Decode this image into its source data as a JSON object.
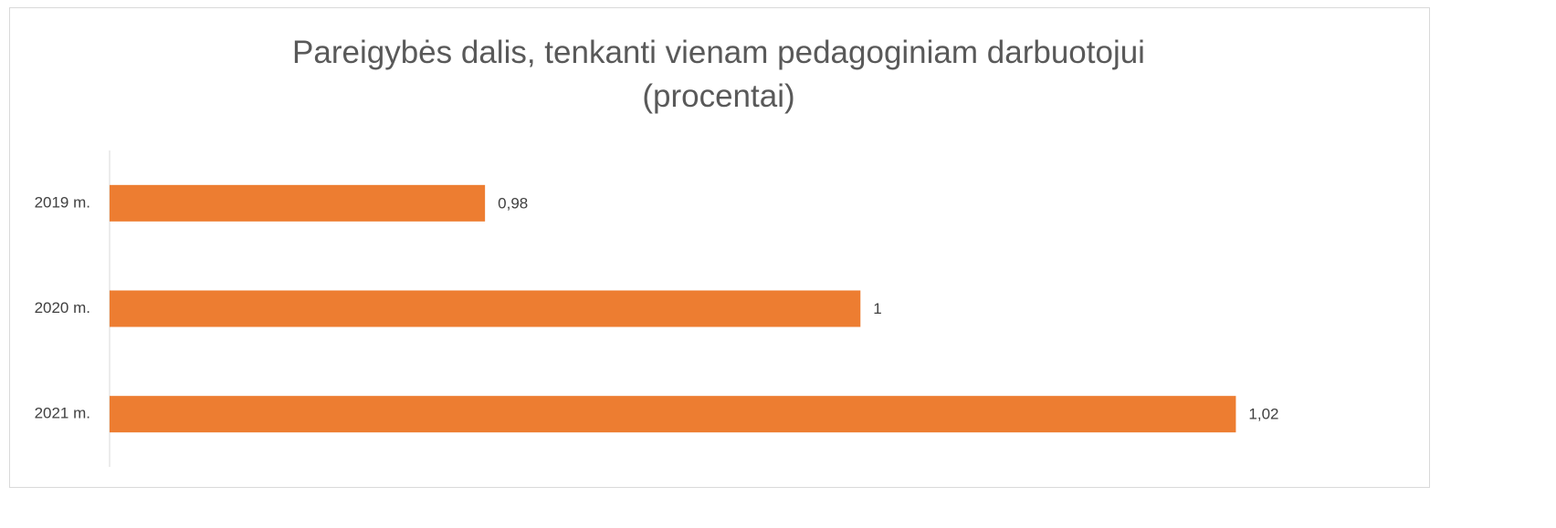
{
  "chart_data": {
    "type": "bar",
    "orientation": "horizontal",
    "title": "Pareigybės dalis, tenkanti vienam pedagoginiam darbuotojui (procentai)",
    "categories": [
      "2019 m.",
      "2020 m.",
      "2021 m."
    ],
    "values": [
      0.98,
      1,
      1.02
    ],
    "value_labels": [
      "0,98",
      "1",
      "1,02"
    ],
    "color": "#ed7d31",
    "xlim": [
      0.96,
      1.03
    ]
  }
}
